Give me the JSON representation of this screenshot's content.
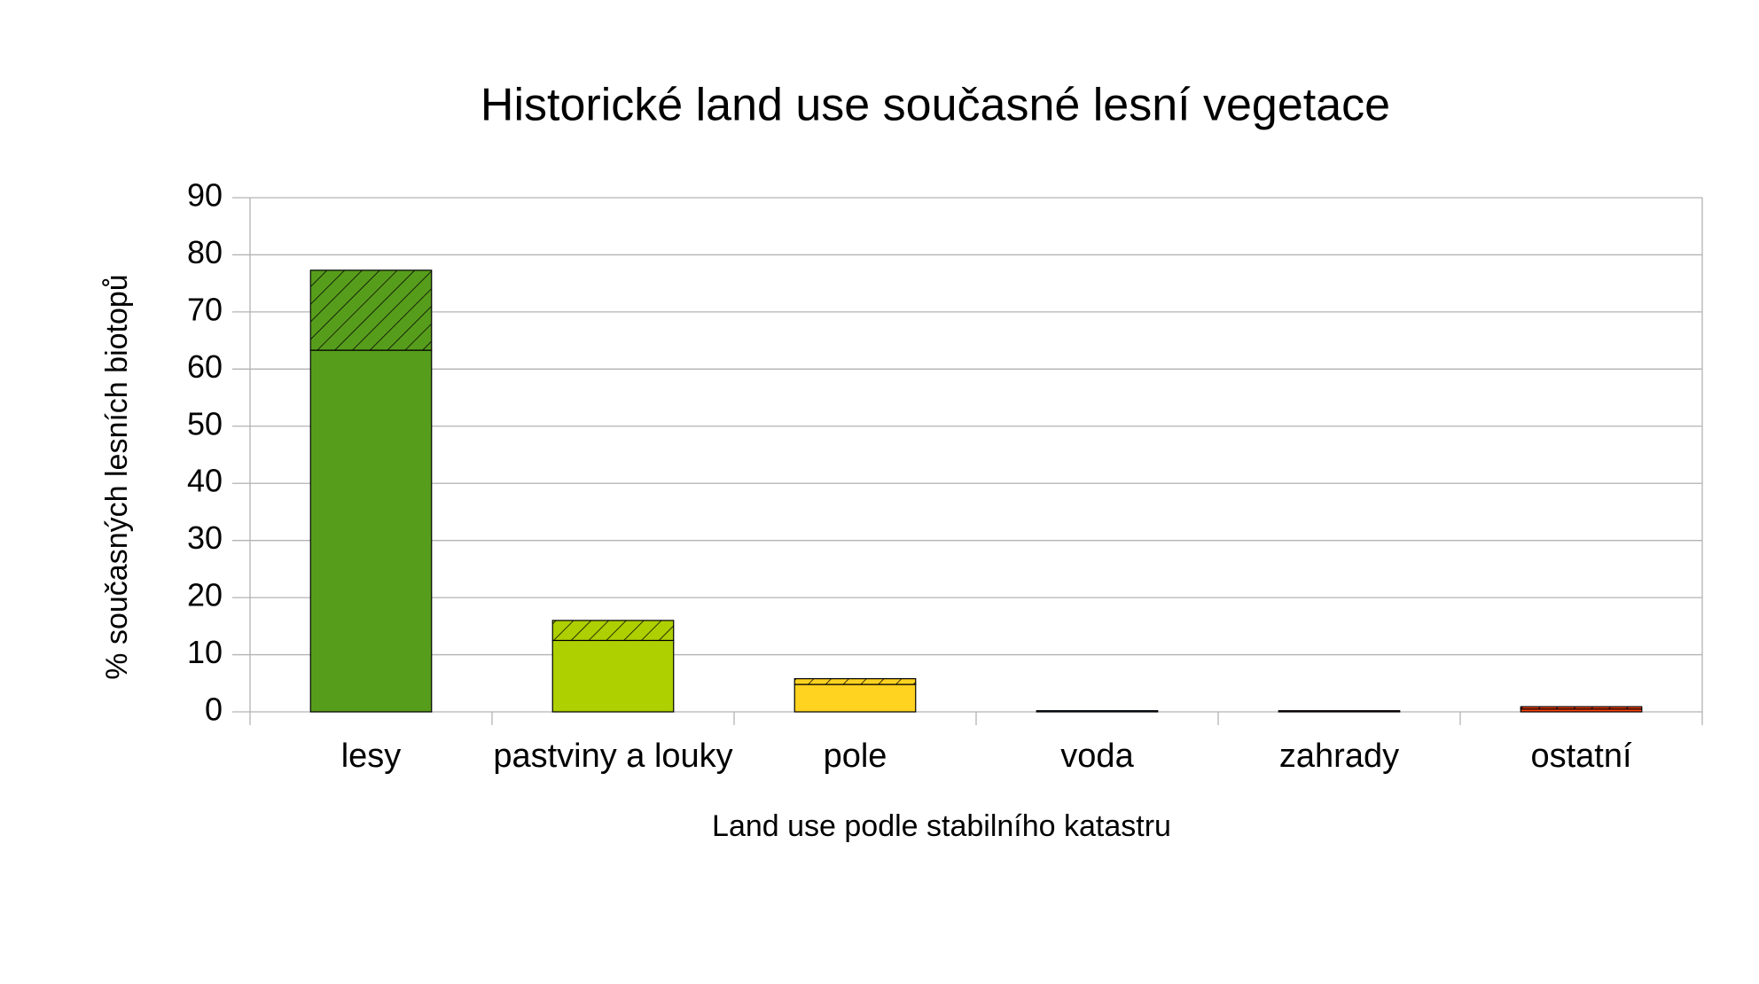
{
  "chart_data": {
    "type": "stacked-bar",
    "title": "Historické land use současné lesní vegetace",
    "x_label": "Land use podle stabilního katastru",
    "y_label": "% současných lesních biotopů",
    "categories": [
      "lesy",
      "pastviny a louky",
      "pole",
      "voda",
      "zahrady",
      "ostatní"
    ],
    "colors": [
      "#579d1c",
      "#aecf00",
      "#ffd320",
      "#004586",
      "#7e0021",
      "#ff420e"
    ],
    "series": [
      {
        "values": [
          63.3,
          12.5,
          4.8,
          0.2,
          0.2,
          0.5
        ]
      },
      {
        "values": [
          14,
          3.5,
          1,
          0,
          0,
          0.4
        ],
        "pattern": "hatch"
      }
    ],
    "ylim": [
      0,
      90
    ],
    "yticks": [
      0,
      10,
      20,
      30,
      40,
      50,
      60,
      70,
      80,
      90
    ],
    "grid": true
  }
}
